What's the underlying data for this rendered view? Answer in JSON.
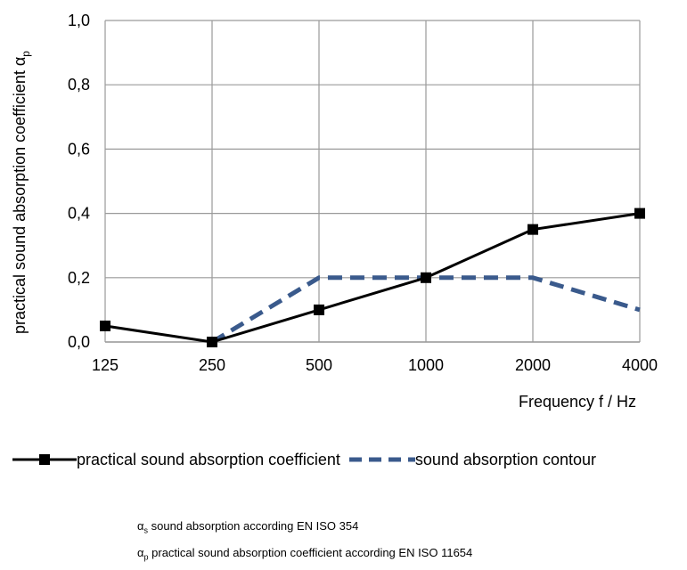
{
  "chart_data": {
    "type": "line",
    "categories": [
      "125",
      "250",
      "500",
      "1000",
      "2000",
      "4000"
    ],
    "series": [
      {
        "name": "practical sound absorption coefficient",
        "values": [
          0.05,
          0.0,
          0.1,
          0.2,
          0.35,
          0.4
        ],
        "color": "#000000",
        "style": "solid",
        "marker": "square"
      },
      {
        "name": "sound absorption contour",
        "values": [
          null,
          0.0,
          0.2,
          0.2,
          0.2,
          0.1
        ],
        "color": "#3a5a8c",
        "style": "dashed",
        "marker": "none"
      }
    ],
    "xlabel": "Frequency f / Hz",
    "ylabel": "practical sound absorption coefficient α",
    "ylabel_sub": "p",
    "ylim": [
      0,
      1.0
    ],
    "yticks": [
      "0,0",
      "0,2",
      "0,4",
      "0,6",
      "0,8",
      "1,0"
    ],
    "grid": true,
    "legend_position": "bottom"
  },
  "notes": [
    {
      "symbol": "α",
      "sub": "s",
      "text": " sound absorption according EN ISO 354"
    },
    {
      "symbol": "α",
      "sub": "p",
      "text": " practical sound absorption coefficient according EN ISO 11654"
    }
  ]
}
